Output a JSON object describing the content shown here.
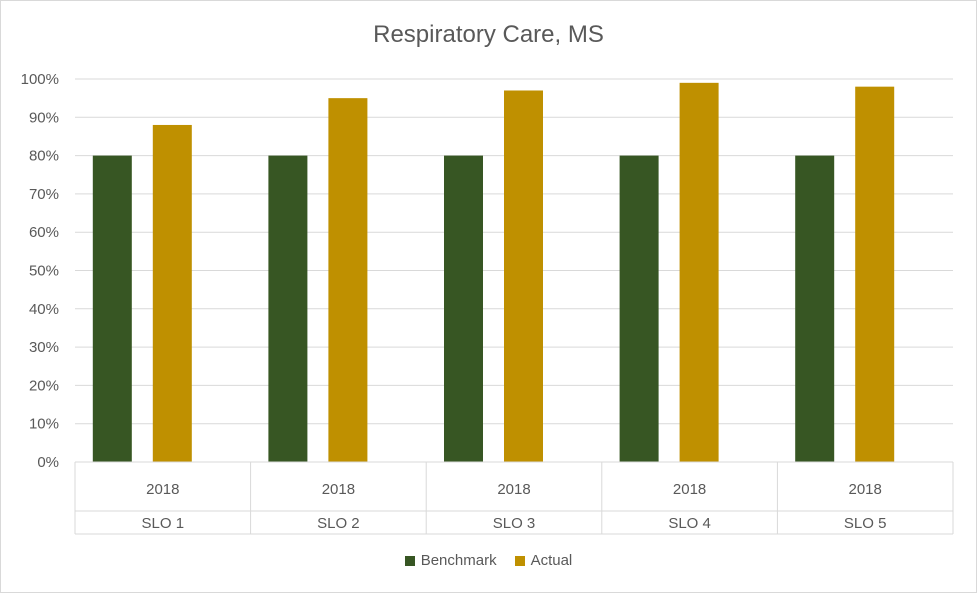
{
  "chart_data": {
    "type": "bar",
    "title": "Respiratory Care, MS",
    "categories": [
      {
        "year": "2018",
        "label": "SLO 1"
      },
      {
        "year": "2018",
        "label": "SLO 2"
      },
      {
        "year": "2018",
        "label": "SLO 3"
      },
      {
        "year": "2018",
        "label": "SLO 4"
      },
      {
        "year": "2018",
        "label": "SLO 5"
      }
    ],
    "series": [
      {
        "name": "Benchmark",
        "color": "#375623",
        "values": [
          80,
          80,
          80,
          80,
          80
        ]
      },
      {
        "name": "Actual",
        "color": "#bf9000",
        "values": [
          88,
          95,
          97,
          99,
          98
        ]
      }
    ],
    "ylim": [
      0,
      100
    ],
    "yticks": [
      "0%",
      "10%",
      "20%",
      "30%",
      "40%",
      "50%",
      "60%",
      "70%",
      "80%",
      "90%",
      "100%"
    ],
    "grid": true,
    "legend_position": "bottom"
  }
}
